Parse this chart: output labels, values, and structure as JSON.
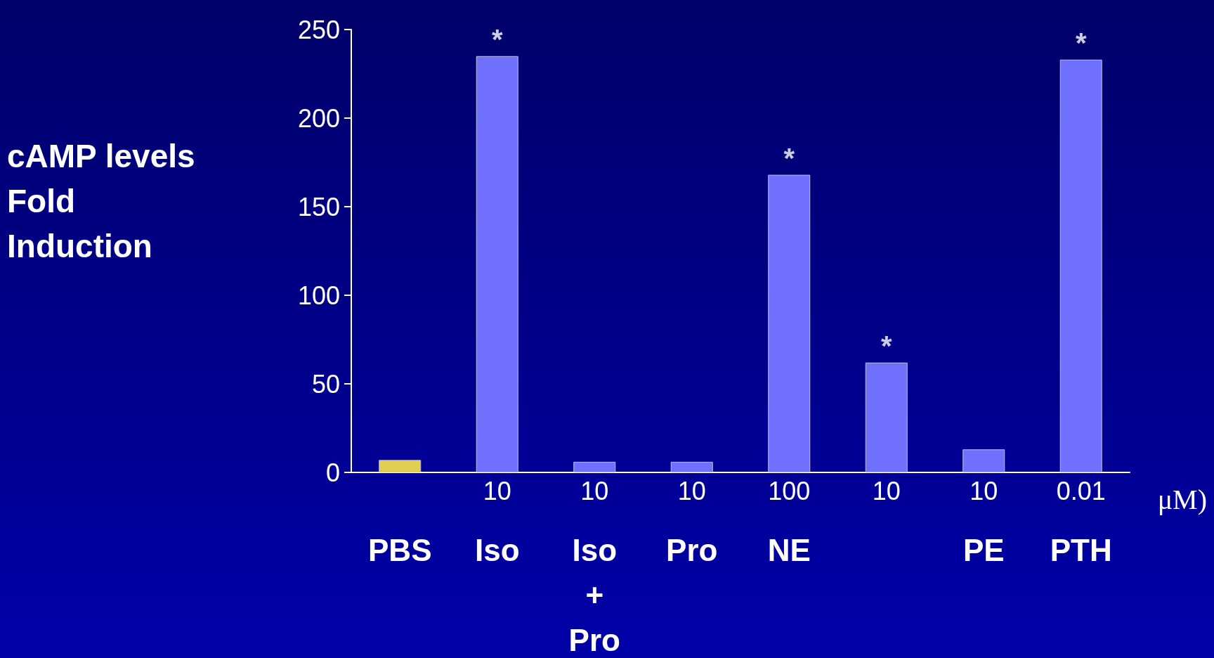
{
  "chart_data": {
    "type": "bar",
    "ylabel": "cAMP levels\nFold\nInduction",
    "categories": [
      "\nPBS",
      "10\nIso",
      "10\nIso\n+\nPro",
      "10\nPro",
      "100\nNE",
      "10\n",
      "10\nPE",
      "0.01\nPTH"
    ],
    "values": [
      7,
      235,
      6,
      6,
      168,
      62,
      13,
      233
    ],
    "colors": [
      "#e0cf50",
      "#7070ff",
      "#7070ff",
      "#7070ff",
      "#7070ff",
      "#7070ff",
      "#7070ff",
      "#7070ff"
    ],
    "ylim": [
      0,
      250
    ],
    "yticks": [
      0,
      50,
      100,
      150,
      200,
      250
    ],
    "grid": false,
    "annotations": [
      {
        "text": "*",
        "x": "10\nIso",
        "y": 235
      },
      {
        "text": "*",
        "x": "100\nNE",
        "y": 168
      },
      {
        "text": "*",
        "x": "10\n",
        "y": 62
      },
      {
        "text": "*",
        "x": "0.01\nPTH",
        "y": 233
      },
      "μM)"
    ]
  }
}
